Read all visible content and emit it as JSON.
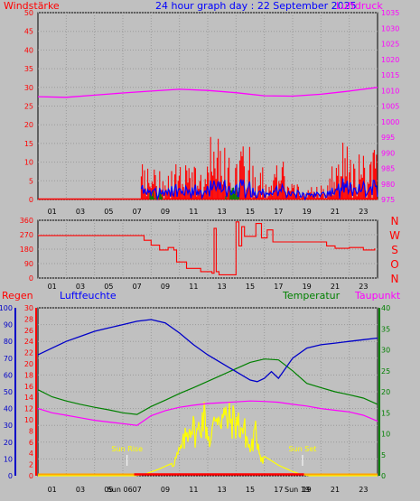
{
  "header": {
    "left_label": "Windstärke",
    "title": "24 hour graph day : 22 September 2025",
    "right_label": "Luftdruck"
  },
  "panel3_labels": {
    "regen": "Regen",
    "luftfeuchte": "Luftfeuchte",
    "temperatur": "Temperatur",
    "taupunkt": "Taupunkt"
  },
  "annotations": {
    "sun_rise": "Sun Rise",
    "sun_set": "Sun Set",
    "sun_rise_time": "Sun 06",
    "sun_set_time": "Sun 19"
  },
  "colors": {
    "wind": "#ff0000",
    "gust": "#ff0000",
    "wind_avg": "#0000ff",
    "wind_green": "#008000",
    "pressure": "#ff00ff",
    "direction": "#ff0000",
    "humidity": "#0000c8",
    "temperature": "#008000",
    "dewpoint": "#ff00ff",
    "solar": "#ffff00",
    "rain": "#ff0000",
    "rain_base": "#ffa500"
  },
  "chart_data": [
    {
      "type": "line",
      "name": "wind-pressure",
      "x_ticks": [
        "01",
        "03",
        "05",
        "07",
        "09",
        "11",
        "13",
        "15",
        "17",
        "19",
        "21",
        "23"
      ],
      "xlim": [
        0,
        24
      ],
      "left_axis": {
        "label": "Windstärke",
        "ylim": [
          0,
          50
        ],
        "ticks": [
          0,
          5,
          10,
          15,
          20,
          25,
          30,
          35,
          40,
          45,
          50
        ]
      },
      "right_axis": {
        "label": "Luftdruck",
        "ylim": [
          975,
          1035
        ],
        "ticks": [
          975,
          980,
          985,
          990,
          995,
          1000,
          1005,
          1010,
          1015,
          1020,
          1025,
          1030,
          1035
        ]
      },
      "series": [
        {
          "name": "Luftdruck",
          "axis": "right",
          "x": [
            0,
            2,
            4,
            6,
            8,
            10,
            12,
            14,
            16,
            18,
            20,
            22,
            24
          ],
          "y": [
            1008,
            1007.8,
            1008.5,
            1009.2,
            1009.8,
            1010.4,
            1010,
            1009.3,
            1008.3,
            1008.2,
            1008.8,
            1009.8,
            1011
          ]
        }
      ],
      "wind_activity": {
        "start": 7.3,
        "end": 24,
        "max_gust": 21,
        "avg_max": 6
      }
    },
    {
      "type": "line",
      "name": "wind-direction",
      "x_ticks": [
        "01",
        "03",
        "05",
        "07",
        "09",
        "11",
        "13",
        "15",
        "17",
        "19",
        "21",
        "23"
      ],
      "xlim": [
        0,
        24
      ],
      "left_axis": {
        "ylim": [
          0,
          360
        ],
        "ticks": [
          0,
          90,
          180,
          270,
          360
        ]
      },
      "right_axis": {
        "ticks": [
          "N",
          "W",
          "S",
          "O",
          "N"
        ]
      },
      "series": [
        {
          "name": "direction",
          "axis": "left",
          "x": [
            0,
            7.4,
            7.5,
            8.0,
            8.6,
            9.2,
            9.6,
            9.8,
            10.5,
            11.5,
            12.3,
            12.45,
            12.6,
            12.8,
            13.3,
            13.8,
            14.0,
            14.2,
            14.4,
            14.6,
            15.0,
            15.4,
            15.8,
            16.2,
            16.6,
            18.5,
            20.0,
            20.4,
            21.0,
            22.0,
            23.0,
            23.8
          ],
          "y": [
            265,
            265,
            235,
            205,
            175,
            190,
            175,
            100,
            60,
            40,
            30,
            310,
            40,
            20,
            20,
            20,
            350,
            200,
            320,
            260,
            260,
            340,
            250,
            300,
            225,
            225,
            225,
            200,
            185,
            190,
            175,
            185
          ]
        }
      ]
    },
    {
      "type": "line",
      "name": "humidity-temperature",
      "x_ticks": [
        "01",
        "03",
        "05",
        "07",
        "09",
        "11",
        "13",
        "15",
        "17",
        "19",
        "21",
        "23"
      ],
      "xlim": [
        0,
        24
      ],
      "regen_axis": {
        "label": "Regen",
        "ylim": [
          0,
          30
        ],
        "ticks": [
          0,
          2,
          4,
          6,
          8,
          10,
          12,
          14,
          16,
          18,
          20,
          22,
          24,
          26,
          28,
          30
        ]
      },
      "luftfeuchte_axis": {
        "label": "Luftfeuchte",
        "ylim": [
          0,
          100
        ],
        "ticks": [
          0,
          10,
          20,
          30,
          40,
          50,
          60,
          70,
          80,
          90,
          100
        ]
      },
      "temp_axis": {
        "label": "Temperatur",
        "ylim": [
          0,
          40
        ],
        "ticks": [
          0,
          5,
          10,
          15,
          20,
          25,
          30,
          35,
          40
        ]
      },
      "series": [
        {
          "name": "Luftfeuchte",
          "axis": "luftfeuchte",
          "x": [
            0,
            1,
            2,
            3,
            4,
            5,
            6,
            7,
            8,
            9,
            10,
            11,
            12,
            13,
            14,
            15,
            15.5,
            16,
            16.5,
            17,
            18,
            19,
            20,
            21,
            22,
            23,
            24
          ],
          "y": [
            72,
            76,
            80,
            83,
            86,
            88,
            90,
            92,
            93,
            91,
            85,
            78,
            72,
            67,
            62,
            57,
            56,
            58,
            62,
            58,
            70,
            76,
            78,
            79,
            80,
            81,
            82
          ]
        },
        {
          "name": "Temperatur",
          "axis": "temp",
          "x": [
            0,
            1,
            2,
            3,
            4,
            5,
            6,
            7,
            8,
            9,
            10,
            11,
            12,
            13,
            14,
            15,
            16,
            17,
            18,
            19,
            20,
            21,
            22,
            23,
            24
          ],
          "y": [
            20.5,
            18.8,
            17.8,
            17,
            16.3,
            15.7,
            15,
            14.6,
            16.5,
            18,
            19.6,
            21,
            22.5,
            24,
            25.5,
            27,
            27.8,
            27.6,
            25,
            22,
            21,
            20,
            19.3,
            18.5,
            17
          ]
        },
        {
          "name": "Taupunkt",
          "axis": "temp",
          "x": [
            0,
            1,
            2,
            3,
            4,
            5,
            6,
            7,
            8,
            9,
            10,
            11,
            12,
            13,
            14,
            15,
            16,
            17,
            18,
            19,
            20,
            21,
            22,
            23,
            24
          ],
          "y": [
            16,
            15,
            14.4,
            13.8,
            13.2,
            12.8,
            12.4,
            12,
            14.3,
            15.5,
            16.3,
            16.8,
            17.2,
            17.4,
            17.6,
            17.8,
            17.7,
            17.5,
            17,
            16.6,
            16,
            15.6,
            15.2,
            14.4,
            13
          ]
        },
        {
          "name": "solar",
          "axis": "temp",
          "x": [
            0,
            6.8,
            7.5,
            8.5,
            9.5,
            10.2,
            10.8,
            11.2,
            11.7,
            12.2,
            12.6,
            13.2,
            14.0,
            14.6,
            15.0,
            15.4,
            15.8,
            16.3,
            17.0,
            18.0,
            18.6,
            19.2,
            24
          ],
          "y": [
            0,
            0,
            0.3,
            1.5,
            3,
            8,
            15,
            11,
            17,
            9,
            18,
            16,
            15,
            12.5,
            7,
            12,
            5,
            4,
            2.5,
            1,
            0.3,
            0,
            0
          ]
        },
        {
          "name": "Regen",
          "axis": "regen",
          "x": [
            0,
            24
          ],
          "y": [
            0,
            0
          ]
        }
      ]
    }
  ]
}
